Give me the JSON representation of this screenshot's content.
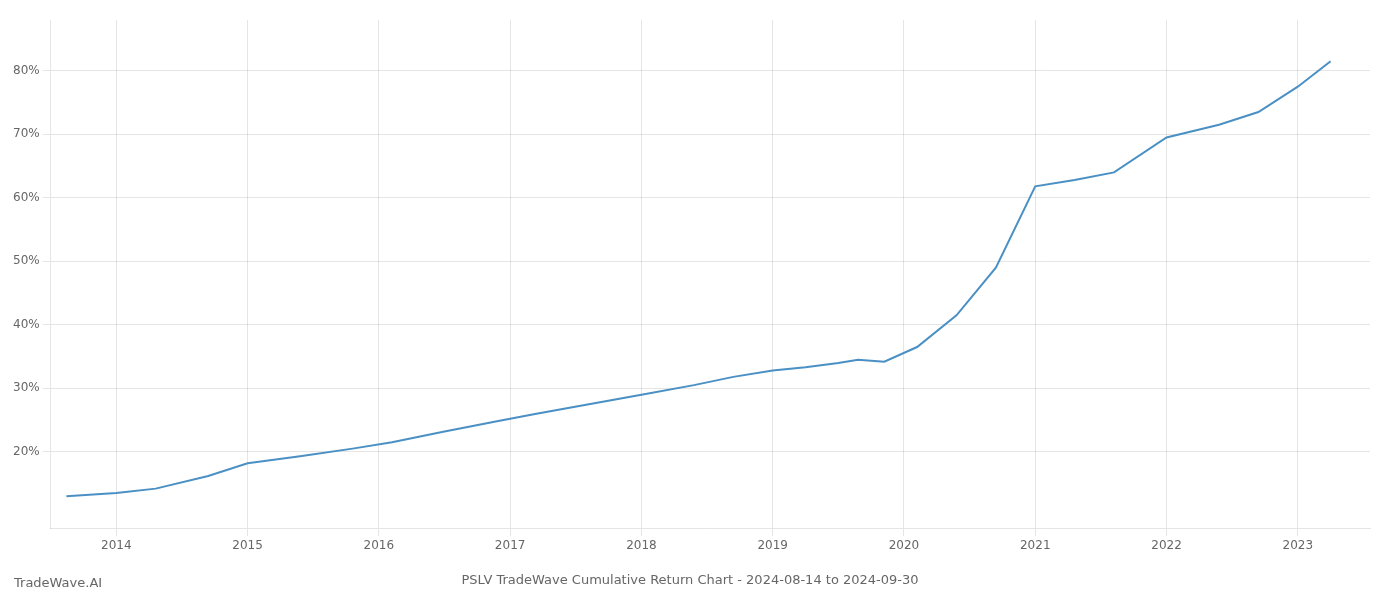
{
  "chart_data": {
    "type": "line",
    "title": "PSLV TradeWave Cumulative Return Chart - 2024-08-14 to 2024-09-30",
    "annotations": [
      "TradeWave.AI"
    ],
    "x": [
      2013.62,
      2014.0,
      2014.3,
      2014.7,
      2015.0,
      2015.4,
      2015.8,
      2016.1,
      2016.5,
      2016.9,
      2017.2,
      2017.6,
      2018.0,
      2018.4,
      2018.7,
      2019.0,
      2019.25,
      2019.5,
      2019.65,
      2019.85,
      2020.1,
      2020.4,
      2020.7,
      2021.0,
      2021.3,
      2021.6,
      2022.0,
      2022.4,
      2022.7,
      2023.0,
      2023.25
    ],
    "values": [
      0.13,
      0.135,
      0.142,
      0.162,
      0.182,
      0.193,
      0.205,
      0.215,
      0.232,
      0.248,
      0.26,
      0.275,
      0.29,
      0.305,
      0.318,
      0.328,
      0.333,
      0.34,
      0.345,
      0.342,
      0.365,
      0.415,
      0.49,
      0.618,
      0.628,
      0.64,
      0.695,
      0.715,
      0.735,
      0.775,
      0.815
    ],
    "color": "#4a90c4",
    "xlim": [
      2013.5,
      2023.55
    ],
    "ylim": [
      0.08,
      0.88
    ],
    "xticks": [
      2014,
      2015,
      2016,
      2017,
      2018,
      2019,
      2020,
      2021,
      2022,
      2023
    ],
    "yticks": [
      {
        "value": 0.2,
        "label": "20%"
      },
      {
        "value": 0.3,
        "label": "30%"
      },
      {
        "value": 0.4,
        "label": "40%"
      },
      {
        "value": 0.5,
        "label": "50%"
      },
      {
        "value": 0.6,
        "label": "60%"
      },
      {
        "value": 0.7,
        "label": "70%"
      },
      {
        "value": 0.8,
        "label": "80%"
      }
    ],
    "grid": true
  }
}
